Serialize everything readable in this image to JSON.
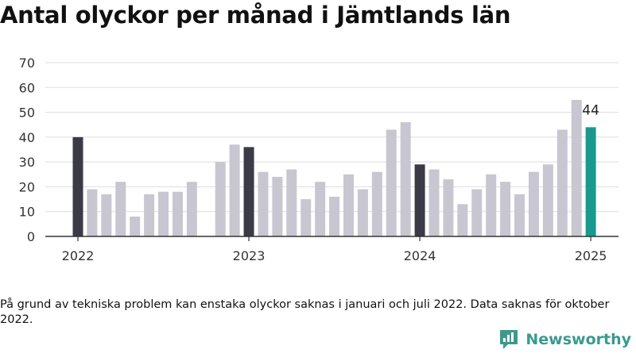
{
  "title": "Antal olyckor per månad i Jämtlands län",
  "footnote": "På grund av tekniska problem kan enstaka olyckor saknas i januari och juli 2022. Data saknas för oktober 2022.",
  "brand": {
    "name": "Newsworthy",
    "icon": "newsworthy-logo-icon"
  },
  "colors": {
    "bar": "#c8c6d0",
    "january": "#3b3a47",
    "latest": "#1a9a8f",
    "grid": "#dddddd",
    "axis": "#333333"
  },
  "chart_data": {
    "type": "bar",
    "title": "Antal olyckor per månad i Jämtlands län",
    "xlabel": "",
    "ylabel": "",
    "ylim": [
      0,
      70
    ],
    "yticks": [
      0,
      10,
      20,
      30,
      40,
      50,
      60,
      70
    ],
    "grid": true,
    "xtick_labels": [
      {
        "label": "2022",
        "index": 0
      },
      {
        "label": "2023",
        "index": 12
      },
      {
        "label": "2024",
        "index": 24
      },
      {
        "label": "2025",
        "index": 36
      }
    ],
    "categories": [
      "2022-01",
      "2022-02",
      "2022-03",
      "2022-04",
      "2022-05",
      "2022-06",
      "2022-07",
      "2022-08",
      "2022-09",
      "2022-10",
      "2022-11",
      "2022-12",
      "2023-01",
      "2023-02",
      "2023-03",
      "2023-04",
      "2023-05",
      "2023-06",
      "2023-07",
      "2023-08",
      "2023-09",
      "2023-10",
      "2023-11",
      "2023-12",
      "2024-01",
      "2024-02",
      "2024-03",
      "2024-04",
      "2024-05",
      "2024-06",
      "2024-07",
      "2024-08",
      "2024-09",
      "2024-10",
      "2024-11",
      "2024-12",
      "2025-01"
    ],
    "values": [
      40,
      19,
      17,
      22,
      8,
      17,
      18,
      18,
      22,
      null,
      30,
      37,
      36,
      26,
      24,
      27,
      15,
      22,
      16,
      25,
      19,
      26,
      43,
      46,
      29,
      27,
      23,
      13,
      19,
      25,
      22,
      17,
      26,
      29,
      43,
      55,
      44
    ],
    "highlight_label": "44"
  }
}
